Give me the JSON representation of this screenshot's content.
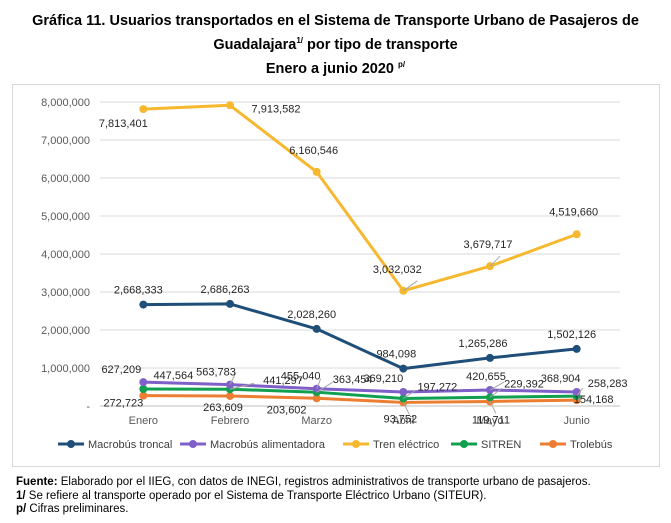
{
  "title": {
    "line1": "Gráfica 11. Usuarios transportados en el Sistema de Transporte Urbano de Pasajeros de",
    "line2_pre": "Guadalajara",
    "line2_sup": "1/",
    "line2_post": " por tipo de transporte",
    "line3": "Enero a junio 2020 ",
    "line3_sup": "p/"
  },
  "notes": {
    "fuente_label": "Fuente:",
    "fuente_text": " Elaborado por el IIEG, con datos de INEGI, registros administrativos de transporte urbano de pasajeros.",
    "note1_label": "1/",
    "note1_text": " Se refiere al transporte operado por el Sistema de Transporte Eléctrico Urbano (SITEUR).",
    "note2_label": "p/",
    "note2_text": " Cifras preliminares."
  },
  "chart_data": {
    "type": "line",
    "categories": [
      "Enero",
      "Febrero",
      "Marzo",
      "Abril",
      "Mayo",
      "Junio"
    ],
    "ylim": [
      0,
      8000000
    ],
    "yticks": [
      0,
      1000000,
      2000000,
      3000000,
      4000000,
      5000000,
      6000000,
      7000000,
      8000000
    ],
    "ytick_labels": [
      "-",
      "1,000,000",
      "2,000,000",
      "3,000,000",
      "4,000,000",
      "5,000,000",
      "6,000,000",
      "7,000,000",
      "8,000,000"
    ],
    "grid": true,
    "legend_position": "bottom",
    "series": [
      {
        "name": "Macrobús troncal",
        "color": "#1f4e79",
        "values": [
          2668333,
          2686263,
          2028260,
          984098,
          1265286,
          1502126
        ],
        "labels": [
          "2,668,333",
          "2,686,263",
          "2,028,260",
          "984,098",
          "1,265,286",
          "1,502,126"
        ]
      },
      {
        "name": "Macrobús alimentadora",
        "color": "#7f5fc8",
        "values": [
          627209,
          563783,
          455040,
          369210,
          420655,
          368904
        ],
        "labels": [
          "627,209",
          "563,783",
          "455,040",
          "369,210",
          "420,655",
          "368,904"
        ]
      },
      {
        "name": "Tren eléctrico",
        "color": "#f5b82e",
        "values": [
          7813401,
          7913582,
          6160546,
          3032032,
          3679717,
          4519660
        ],
        "labels": [
          "7,813,401",
          "7,913,582",
          "6,160,546",
          "3,032,032",
          "3,679,717",
          "4,519,660"
        ]
      },
      {
        "name": "SITREN",
        "color": "#10a050",
        "values": [
          447564,
          441297,
          363454,
          197272,
          229392,
          258283
        ],
        "labels": [
          "447,564",
          "441,297",
          "363,454",
          "197,272",
          "229,392",
          "258,283"
        ]
      },
      {
        "name": "Trolebús",
        "color": "#ed7d31",
        "values": [
          272723,
          263609,
          203602,
          93752,
          119711,
          154168
        ],
        "labels": [
          "272,723",
          "263,609",
          "203,602",
          "93,752",
          "119,711",
          "154,168"
        ]
      }
    ]
  }
}
